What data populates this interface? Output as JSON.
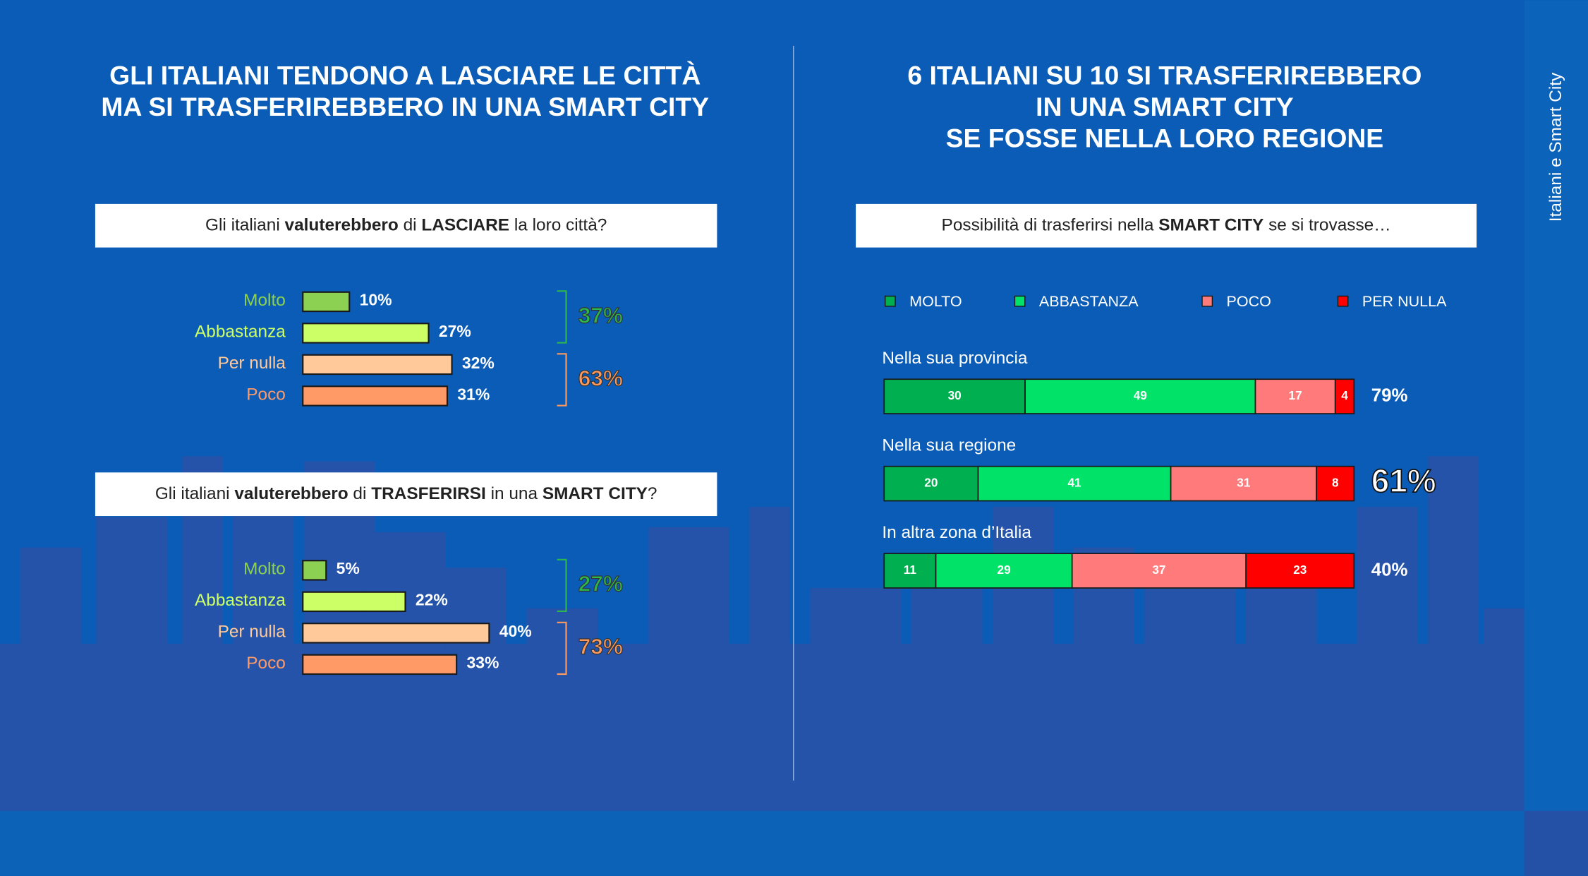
{
  "side_label": "Italiani e Smart City",
  "headings": {
    "left": [
      "GLI ITALIANI TENDONO A LASCIARE LE CITTÀ",
      "MA SI TRASFERIREBBERO IN UNA SMART CITY"
    ],
    "right": [
      "6 ITALIANI SU 10 SI TRASFERIREBBERO",
      "IN UNA SMART CITY",
      "SE FOSSE NELLA LORO REGIONE"
    ]
  },
  "chart_data": [
    {
      "type": "bar",
      "question": [
        {
          "text": "Gli italiani ",
          "bold": false
        },
        {
          "text": "valuterebbero",
          "bold": true
        },
        {
          "text": " di ",
          "bold": false
        },
        {
          "text": "LASCIARE",
          "bold": true
        },
        {
          "text": " la loro città?",
          "bold": false
        }
      ],
      "categories": [
        "Molto",
        "Abbastanza",
        "Per nulla",
        "Poco"
      ],
      "values": [
        10,
        27,
        32,
        31
      ],
      "value_labels": [
        "10%",
        "27%",
        "32%",
        "31%"
      ],
      "colors": [
        "#8cd152",
        "#ccff66",
        "#ffc999",
        "#ff9966"
      ],
      "groups": [
        {
          "label": "37%",
          "value": 37,
          "categories": [
            "Molto",
            "Abbastanza"
          ],
          "color": "#2db84c"
        },
        {
          "label": "63%",
          "value": 63,
          "categories": [
            "Per nulla",
            "Poco"
          ],
          "color": "#ff9a5c"
        }
      ]
    },
    {
      "type": "bar",
      "question": [
        {
          "text": "Gli italiani ",
          "bold": false
        },
        {
          "text": "valuterebbero",
          "bold": true
        },
        {
          "text": " di ",
          "bold": false
        },
        {
          "text": "TRASFERIRSI",
          "bold": true
        },
        {
          "text": " in una ",
          "bold": false
        },
        {
          "text": "SMART CITY",
          "bold": true
        },
        {
          "text": "?",
          "bold": false
        }
      ],
      "categories": [
        "Molto",
        "Abbastanza",
        "Per nulla",
        "Poco"
      ],
      "values": [
        5,
        22,
        40,
        33
      ],
      "value_labels": [
        "5%",
        "22%",
        "40%",
        "33%"
      ],
      "colors": [
        "#8cd152",
        "#ccff66",
        "#ffc999",
        "#ff9966"
      ],
      "groups": [
        {
          "label": "27%",
          "value": 27,
          "categories": [
            "Molto",
            "Abbastanza"
          ],
          "color": "#2db84c"
        },
        {
          "label": "73%",
          "value": 73,
          "categories": [
            "Per nulla",
            "Poco"
          ],
          "color": "#ff9a5c"
        }
      ]
    },
    {
      "type": "stacked_bar",
      "question": [
        {
          "text": "Possibilità di trasferirsi nella ",
          "bold": false
        },
        {
          "text": "SMART CITY",
          "bold": true
        },
        {
          "text": " se si trovasse…",
          "bold": false
        }
      ],
      "categories": [
        "Nella sua provincia",
        "Nella sua regione",
        "In altra zona d’Italia"
      ],
      "series": [
        {
          "name": "MOLTO",
          "color": "#00b050",
          "values": [
            30,
            20,
            11
          ]
        },
        {
          "name": "ABBASTANZA",
          "color": "#00e368",
          "values": [
            49,
            41,
            29
          ]
        },
        {
          "name": "POCO",
          "color": "#ff7b7b",
          "values": [
            17,
            31,
            37
          ]
        },
        {
          "name": "PER NULLA",
          "color": "#ff0000",
          "values": [
            4,
            8,
            23
          ]
        }
      ],
      "totals": {
        "values": [
          79,
          61,
          40
        ],
        "value_labels": [
          "79%",
          "61%",
          "40%"
        ]
      },
      "highlight": "Nella sua regione"
    }
  ]
}
